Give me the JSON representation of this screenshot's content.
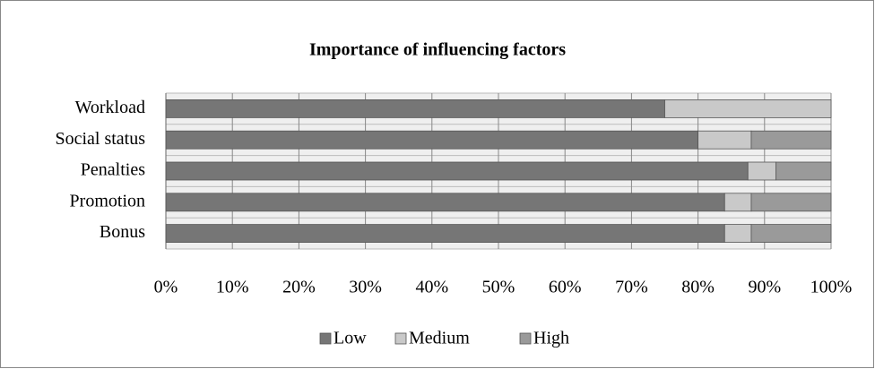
{
  "chart_data": {
    "type": "bar",
    "orientation": "horizontal",
    "stacked": true,
    "title": "Importance of influencing factors",
    "categories": [
      "Workload",
      "Social status",
      "Penalties",
      "Promotion",
      "Bonus"
    ],
    "series": [
      {
        "name": "Low",
        "color": "#767676",
        "values": [
          75,
          80,
          87.5,
          84,
          84
        ]
      },
      {
        "name": "Medium",
        "color": "#c9c9c9",
        "values": [
          25,
          8,
          4.2,
          4,
          4
        ]
      },
      {
        "name": "High",
        "color": "#9a9a9a",
        "values": [
          0,
          12,
          8.3,
          12,
          12
        ]
      }
    ],
    "xlim": [
      0,
      100
    ],
    "xticks": [
      {
        "value": 0,
        "label": "0%"
      },
      {
        "value": 10,
        "label": "10%"
      },
      {
        "value": 20,
        "label": "20%"
      },
      {
        "value": 30,
        "label": "30%"
      },
      {
        "value": 40,
        "label": "40%"
      },
      {
        "value": 50,
        "label": "50%"
      },
      {
        "value": 60,
        "label": "60%"
      },
      {
        "value": 70,
        "label": "70%"
      },
      {
        "value": 80,
        "label": "80%"
      },
      {
        "value": 90,
        "label": "90%"
      },
      {
        "value": 100,
        "label": "100%"
      }
    ],
    "grid": true,
    "legend": "bottom"
  }
}
